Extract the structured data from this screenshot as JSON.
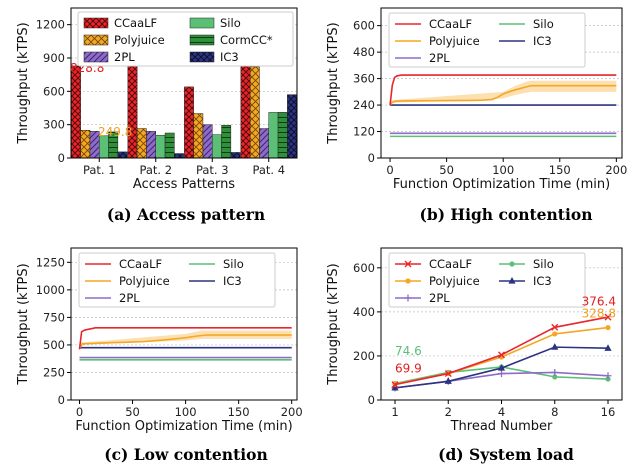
{
  "chart_data": [
    {
      "id": "a",
      "type": "bar",
      "caption": "(a) Access pattern",
      "xlabel": "Access Patterns",
      "ylabel": "Throughput (kTPS)",
      "ylim": [
        0,
        1350
      ],
      "yticks": [
        0,
        300,
        600,
        900,
        1200
      ],
      "categories": [
        "Pat. 1",
        "Pat. 2",
        "Pat. 3",
        "Pat. 4"
      ],
      "legend_placement": "top",
      "series": [
        {
          "name": "CCaaLF",
          "color": "#e8262b",
          "values": [
            828.8,
            860,
            640,
            1110
          ]
        },
        {
          "name": "Polyjuice",
          "color": "#f5a623",
          "values": [
            249.8,
            265,
            400,
            820
          ]
        },
        {
          "name": "2PL",
          "color": "#8e6bc6",
          "values": [
            240,
            240,
            300,
            265
          ]
        },
        {
          "name": "Silo",
          "color": "#5bbf76",
          "values": [
            200,
            205,
            210,
            410
          ]
        },
        {
          "name": "CormCC*",
          "color": "#2f8f3a",
          "values": [
            235,
            225,
            295,
            410
          ]
        },
        {
          "name": "IC3",
          "color": "#2c3480",
          "values": [
            55,
            40,
            50,
            570
          ]
        }
      ],
      "annotations": [
        {
          "text": "828.8",
          "color": "#e02020",
          "x": "Pat. 1",
          "y": 828.8
        },
        {
          "text": "249.8",
          "color": "#f0a020",
          "x": "Pat. 1",
          "y": 249.8
        }
      ]
    },
    {
      "id": "b",
      "type": "line",
      "caption": "(b) High contention",
      "xlabel": "Function Optimization Time (min)",
      "ylabel": "Throughput (kTPS)",
      "xlim": [
        -8,
        205
      ],
      "xticks": [
        0,
        50,
        100,
        150,
        200
      ],
      "ylim": [
        0,
        680
      ],
      "yticks": [
        0,
        120,
        240,
        360,
        480,
        600
      ],
      "legend_placement": "top",
      "series": [
        {
          "name": "CCaaLF",
          "color": "#e8262b",
          "x": [
            0,
            2,
            4,
            6,
            10,
            200
          ],
          "y": [
            240,
            330,
            365,
            372,
            376,
            376
          ]
        },
        {
          "name": "Polyjuice",
          "color": "#f5a623",
          "x": [
            0,
            2,
            5,
            40,
            70,
            80,
            90,
            95,
            100,
            105,
            110,
            115,
            120,
            125,
            200
          ],
          "y": [
            240,
            252,
            258,
            260,
            261,
            262,
            265,
            275,
            290,
            300,
            308,
            315,
            322,
            328,
            328
          ],
          "band": {
            "x": [
              0,
              100,
              110,
              120,
              125,
              200
            ],
            "low": [
              250,
              270,
              285,
              295,
              300,
              300
            ],
            "high": [
              262,
              300,
              325,
              345,
              350,
              350
            ]
          }
        },
        {
          "name": "2PL",
          "color": "#8e6bc6",
          "x": [
            0,
            200
          ],
          "y": [
            112,
            112
          ]
        },
        {
          "name": "Silo",
          "color": "#5bbf76",
          "x": [
            0,
            200
          ],
          "y": [
            98,
            98
          ]
        },
        {
          "name": "IC3",
          "color": "#2c3480",
          "x": [
            0,
            200
          ],
          "y": [
            240,
            240
          ]
        }
      ]
    },
    {
      "id": "c",
      "type": "line",
      "caption": "(c) Low contention",
      "xlabel": "Function Optimization Time (min)",
      "ylabel": "Throughput (kTPS)",
      "xlim": [
        -8,
        205
      ],
      "xticks": [
        0,
        50,
        100,
        150,
        200
      ],
      "ylim": [
        0,
        1380
      ],
      "yticks": [
        0,
        250,
        500,
        750,
        1000,
        1250
      ],
      "legend_placement": "top",
      "series": [
        {
          "name": "CCaaLF",
          "color": "#e8262b",
          "x": [
            0,
            2,
            5,
            10,
            15,
            200
          ],
          "y": [
            460,
            620,
            635,
            645,
            655,
            655
          ]
        },
        {
          "name": "Polyjuice",
          "color": "#f5a623",
          "x": [
            0,
            3,
            30,
            60,
            80,
            100,
            110,
            120,
            200
          ],
          "y": [
            470,
            510,
            520,
            530,
            545,
            565,
            580,
            590,
            590
          ],
          "band": {
            "x": [
              0,
              100,
              115,
              200
            ],
            "low": [
              500,
              540,
              555,
              555
            ],
            "high": [
              520,
              600,
              630,
              630
            ]
          }
        },
        {
          "name": "2PL",
          "color": "#8e6bc6",
          "x": [
            0,
            200
          ],
          "y": [
            385,
            385
          ]
        },
        {
          "name": "Silo",
          "color": "#5bbf76",
          "x": [
            0,
            200
          ],
          "y": [
            365,
            365
          ]
        },
        {
          "name": "IC3",
          "color": "#2c3480",
          "x": [
            0,
            200
          ],
          "y": [
            475,
            475
          ]
        }
      ]
    },
    {
      "id": "d",
      "type": "line",
      "caption": "(d) System load",
      "xlabel": "Thread Number",
      "ylabel": "Throughput (kTPS)",
      "xcategories": [
        "1",
        "2",
        "4",
        "8",
        "16"
      ],
      "ylim": [
        0,
        690
      ],
      "yticks": [
        0,
        200,
        400,
        600
      ],
      "legend_placement": "top",
      "series": [
        {
          "name": "CCaaLF",
          "color": "#e8262b",
          "marker": "x",
          "y": [
            69.9,
            120,
            205,
            330,
            376.4
          ]
        },
        {
          "name": "Polyjuice",
          "color": "#f5a623",
          "marker": "o",
          "y": [
            72,
            120,
            195,
            300,
            328.8
          ]
        },
        {
          "name": "2PL",
          "color": "#8e6bc6",
          "marker": "+",
          "y": [
            55,
            85,
            120,
            125,
            110
          ]
        },
        {
          "name": "Silo",
          "color": "#5bbf76",
          "marker": "o",
          "y": [
            74.6,
            125,
            150,
            105,
            95
          ]
        },
        {
          "name": "IC3",
          "color": "#2c3480",
          "marker": "^",
          "y": [
            55,
            85,
            145,
            240,
            235
          ]
        }
      ],
      "annotations": [
        {
          "text": "74.6",
          "color": "#5bbf76",
          "xi": 0,
          "y": 205
        },
        {
          "text": "69.9",
          "color": "#e02020",
          "xi": 0,
          "y": 125
        },
        {
          "text": "376.4",
          "color": "#e02020",
          "xi": 4,
          "y": 430
        },
        {
          "text": "328.8",
          "color": "#f0a020",
          "xi": 4,
          "y": 375
        }
      ]
    }
  ]
}
